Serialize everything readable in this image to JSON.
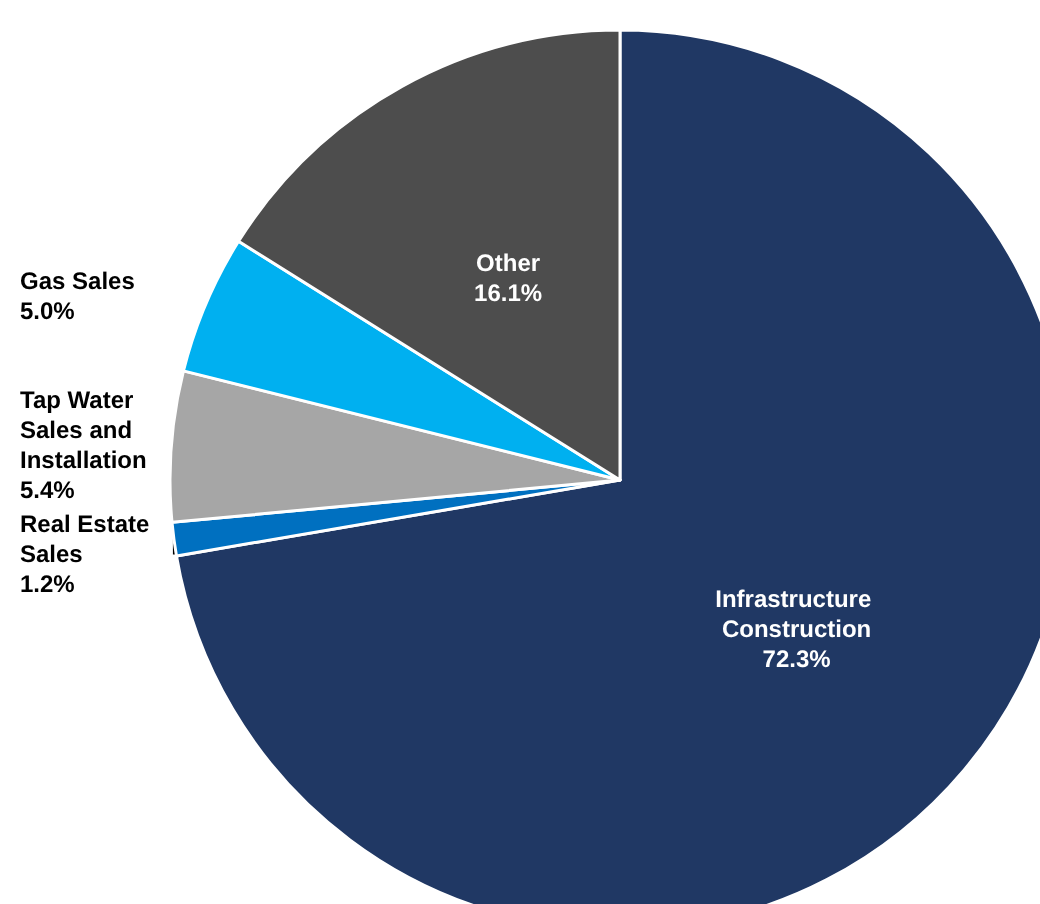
{
  "chart_data": {
    "type": "pie",
    "categories": [
      "Infrastructure Construction",
      "Real Estate Sales",
      "Tap Water Sales and Installation",
      "Gas Sales",
      "Other"
    ],
    "values": [
      72.3,
      1.2,
      5.4,
      5.0,
      16.1
    ],
    "colors": [
      "#203864",
      "#0070c0",
      "#a6a6a6",
      "#00b0f0",
      "#4d4d4d"
    ],
    "value_labels": [
      "72.3%",
      "1.2%",
      "5.4%",
      "5.0%",
      "16.1%"
    ],
    "legend": false
  }
}
